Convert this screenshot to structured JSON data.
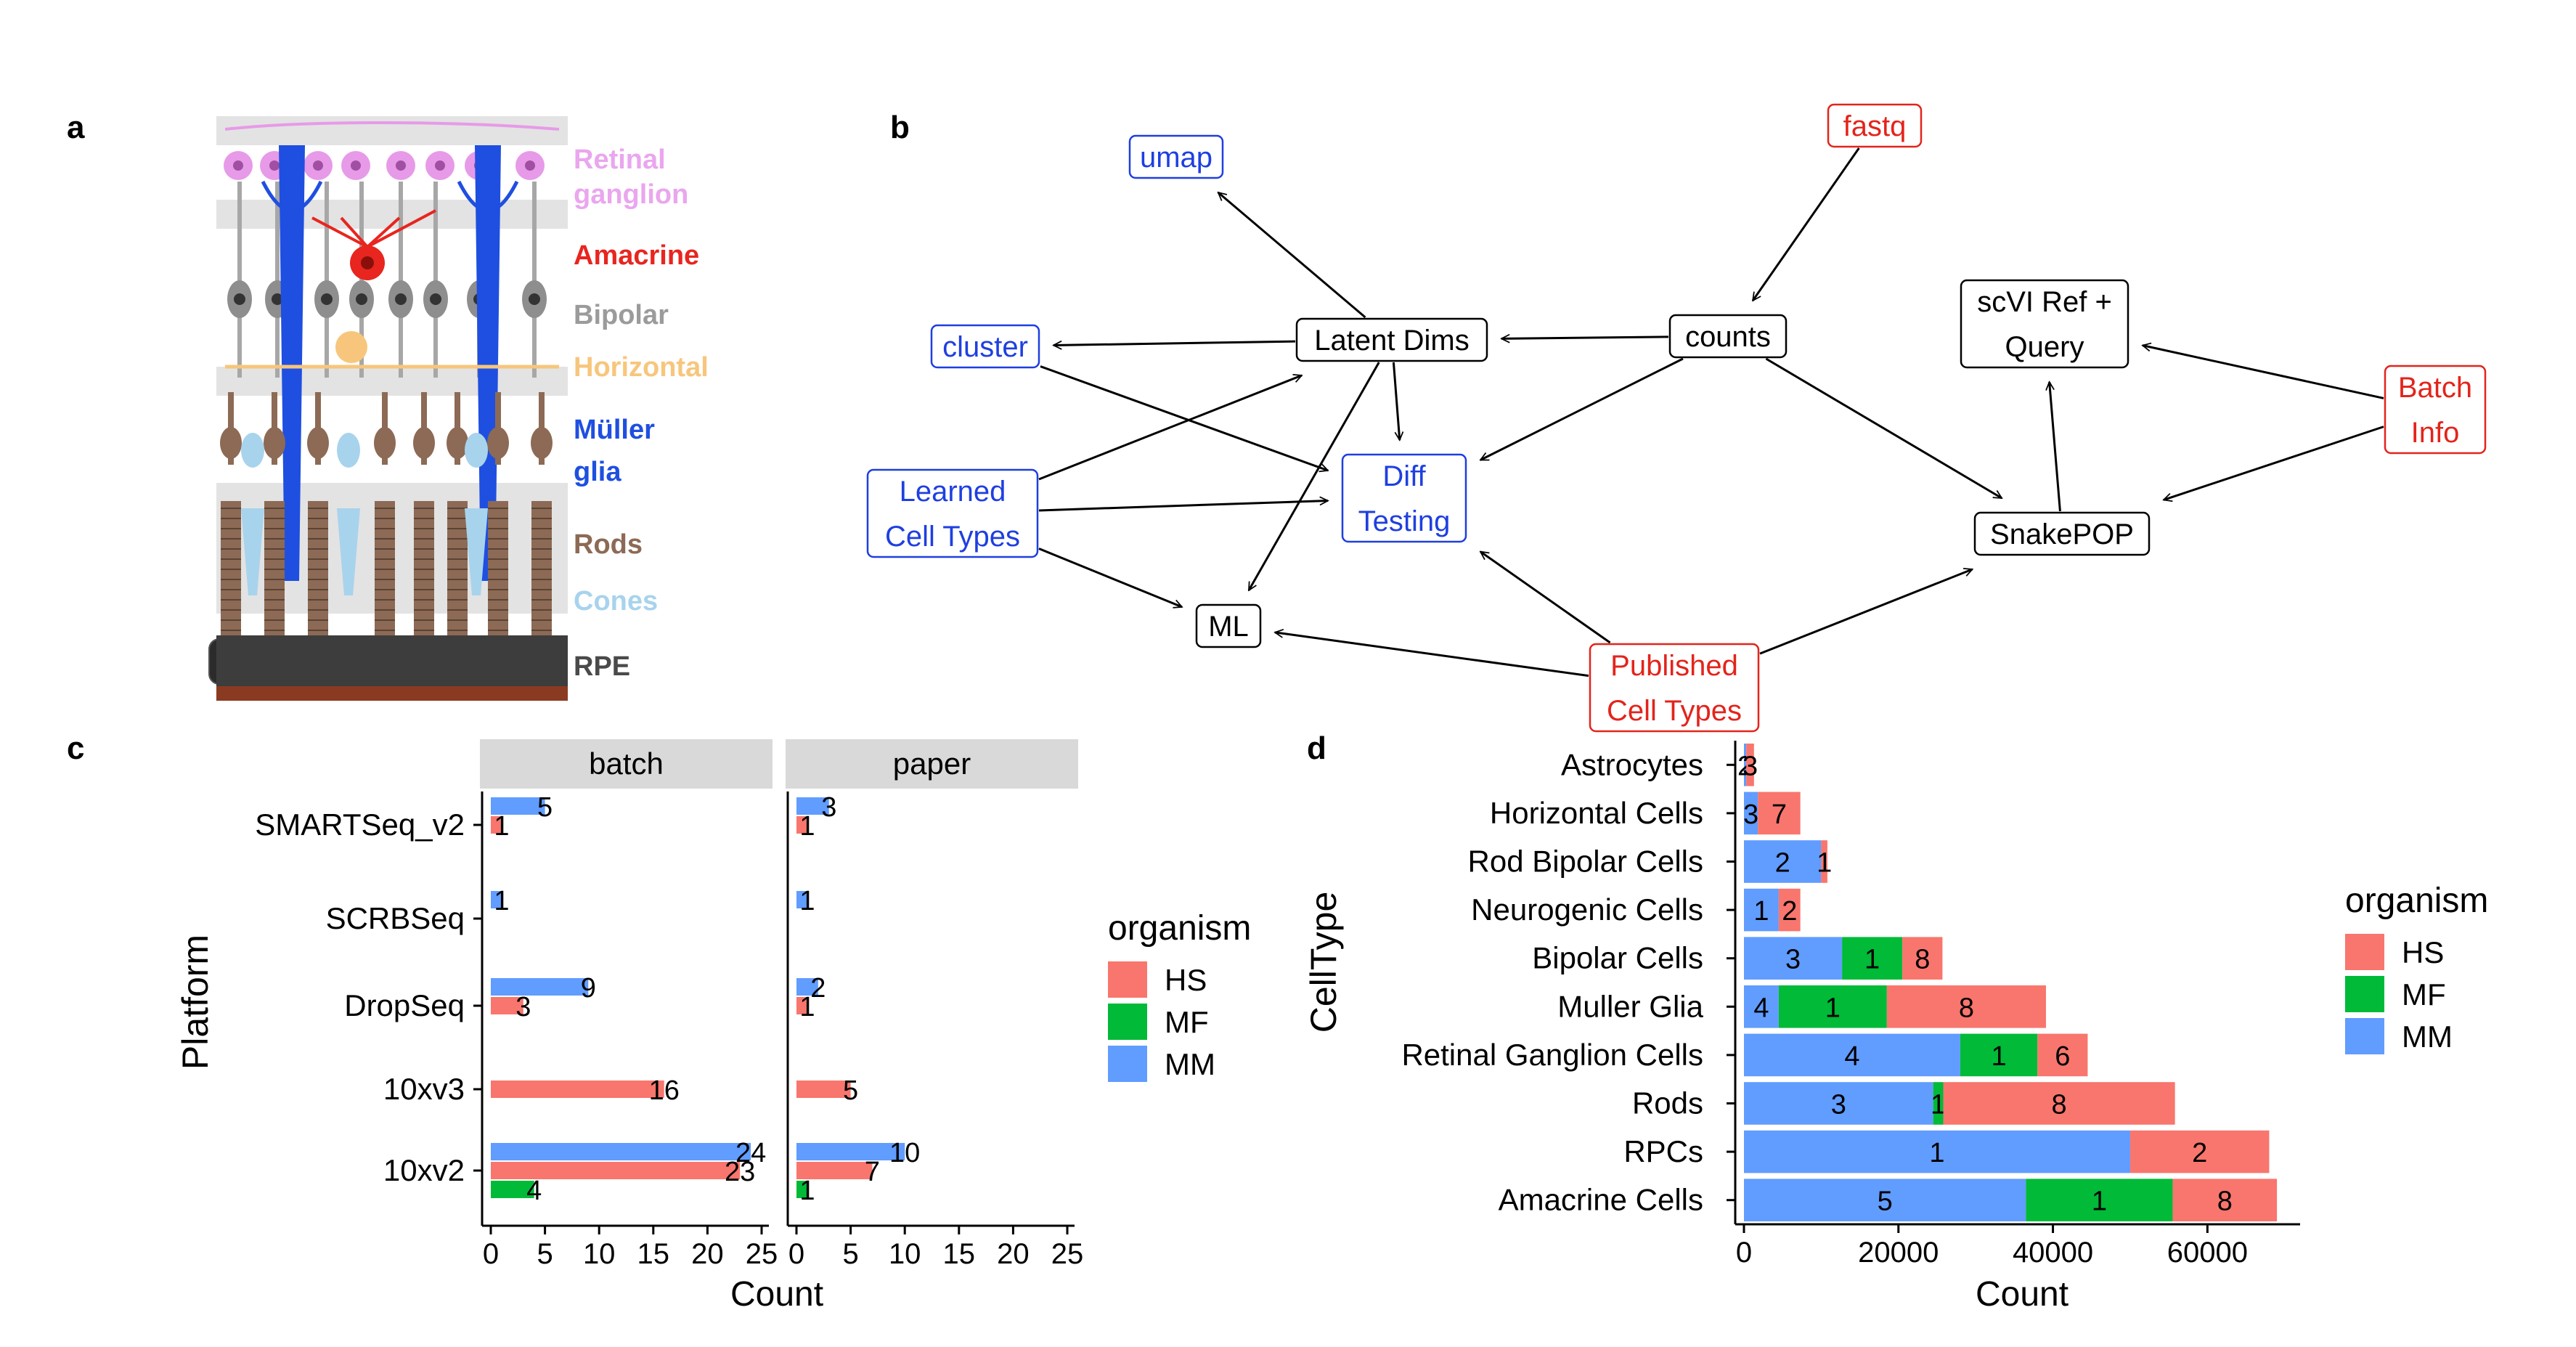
{
  "panels": {
    "a": {
      "letter": "a",
      "labels": [
        {
          "text": "Retinal",
          "color": "#eaa6ee"
        },
        {
          "text": "ganglion",
          "color": "#eaa6ee"
        },
        {
          "text": "Amacrine",
          "color": "#e8251f"
        },
        {
          "text": "Bipolar",
          "color": "#9b9b9b"
        },
        {
          "text": "Horizontal",
          "color": "#f7c67c"
        },
        {
          "text": "Müller",
          "color": "#1f4fe0"
        },
        {
          "text": "glia",
          "color": "#1f4fe0"
        },
        {
          "text": "Rods",
          "color": "#8c6a55"
        },
        {
          "text": "Cones",
          "color": "#a8d3ec"
        },
        {
          "text": "RPE",
          "color": "#4a4a4a"
        }
      ]
    },
    "b": {
      "letter": "b",
      "nodes": [
        {
          "id": "umap",
          "lines": [
            "umap"
          ],
          "color": "#1e3fe0"
        },
        {
          "id": "fastq",
          "lines": [
            "fastq"
          ],
          "color": "#e3241b"
        },
        {
          "id": "cluster",
          "lines": [
            "cluster"
          ],
          "color": "#1e3fe0"
        },
        {
          "id": "latent",
          "lines": [
            "Latent Dims"
          ],
          "color": "#000000"
        },
        {
          "id": "counts",
          "lines": [
            "counts"
          ],
          "color": "#000000"
        },
        {
          "id": "scvi",
          "lines": [
            "scVI Ref +",
            "Query"
          ],
          "color": "#000000"
        },
        {
          "id": "batch",
          "lines": [
            "Batch",
            "Info"
          ],
          "color": "#e3241b"
        },
        {
          "id": "learned",
          "lines": [
            "Learned",
            "Cell Types"
          ],
          "color": "#1e3fe0"
        },
        {
          "id": "diff",
          "lines": [
            "Diff",
            "Testing"
          ],
          "color": "#1e3fe0"
        },
        {
          "id": "snakepop",
          "lines": [
            "SnakePOP"
          ],
          "color": "#000000"
        },
        {
          "id": "ml",
          "lines": [
            "ML"
          ],
          "color": "#000000"
        },
        {
          "id": "published",
          "lines": [
            "Published",
            "Cell Types"
          ],
          "color": "#e3241b"
        }
      ],
      "edges": [
        [
          "latent",
          "umap"
        ],
        [
          "latent",
          "cluster"
        ],
        [
          "latent",
          "diff"
        ],
        [
          "latent",
          "ml"
        ],
        [
          "fastq",
          "counts"
        ],
        [
          "counts",
          "latent"
        ],
        [
          "counts",
          "diff"
        ],
        [
          "counts",
          "snakepop"
        ],
        [
          "cluster",
          "diff"
        ],
        [
          "learned",
          "latent"
        ],
        [
          "learned",
          "diff"
        ],
        [
          "learned",
          "ml"
        ],
        [
          "published",
          "diff"
        ],
        [
          "published",
          "ml"
        ],
        [
          "published",
          "snakepop"
        ],
        [
          "snakepop",
          "scvi"
        ],
        [
          "batch",
          "scvi"
        ],
        [
          "batch",
          "snakepop"
        ]
      ]
    }
  },
  "legend": {
    "title": "organism",
    "entries": [
      {
        "label": "HS",
        "color": "#f8766d"
      },
      {
        "label": "MF",
        "color": "#00ba38"
      },
      {
        "label": "MM",
        "color": "#619cff"
      }
    ]
  },
  "chart_data": [
    {
      "panel": "c",
      "type": "bar",
      "orientation": "horizontal",
      "facets": [
        "batch",
        "paper"
      ],
      "categories": [
        "10xv2",
        "10xv3",
        "DropSeq",
        "SCRBSeq",
        "SMARTSeq_v2"
      ],
      "series": [
        {
          "name": "MM",
          "color": "#619cff",
          "values": {
            "batch": [
              24,
              0,
              9,
              1,
              5
            ],
            "paper": [
              10,
              0,
              2,
              1,
              3
            ]
          }
        },
        {
          "name": "HS",
          "color": "#f8766d",
          "values": {
            "batch": [
              23,
              16,
              3,
              0,
              1
            ],
            "paper": [
              7,
              5,
              1,
              0,
              1
            ]
          }
        },
        {
          "name": "MF",
          "color": "#00ba38",
          "values": {
            "batch": [
              4,
              0,
              0,
              0,
              0
            ],
            "paper": [
              1,
              0,
              0,
              0,
              0
            ]
          }
        }
      ],
      "xlabel": "Count",
      "ylabel": "Platform",
      "xlim": [
        0,
        25
      ],
      "xticks": [
        0,
        5,
        10,
        15,
        20,
        25
      ]
    },
    {
      "panel": "d",
      "type": "bar",
      "orientation": "horizontal",
      "stacked": true,
      "categories": [
        "Amacrine Cells",
        "RPCs",
        "Rods",
        "Retinal Ganglion Cells",
        "Muller Glia",
        "Bipolar Cells",
        "Neurogenic Cells",
        "Rod Bipolar Cells",
        "Horizontal Cells",
        "Astrocytes"
      ],
      "series": [
        {
          "name": "MM",
          "color": "#619cff",
          "values": [
            36500,
            50000,
            24500,
            28000,
            4500,
            12700,
            4500,
            10000,
            1800,
            300
          ],
          "labels": [
            "5",
            "1",
            "3",
            "4",
            "4",
            "3",
            "1",
            "2",
            "3",
            "2"
          ]
        },
        {
          "name": "MF",
          "color": "#00ba38",
          "values": [
            19000,
            0,
            1300,
            10000,
            14000,
            7800,
            0,
            0,
            0,
            0
          ],
          "labels": [
            "1",
            "",
            "1",
            "1",
            "1",
            "1",
            "",
            "",
            "",
            ""
          ]
        },
        {
          "name": "HS",
          "color": "#f8766d",
          "values": [
            13500,
            18000,
            30000,
            6500,
            20600,
            5200,
            2800,
            800,
            5500,
            1000
          ],
          "labels": [
            "8",
            "2",
            "8",
            "6",
            "8",
            "8",
            "2",
            "1",
            "7",
            "3"
          ]
        }
      ],
      "xlabel": "Count",
      "ylabel": "CellType",
      "xlim": [
        0,
        72000
      ],
      "xticks": [
        0,
        20000,
        40000,
        60000
      ]
    }
  ]
}
